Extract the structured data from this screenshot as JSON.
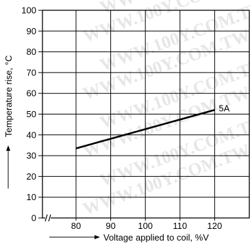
{
  "chart_data": {
    "type": "line",
    "xlabel": "Voltage applied to coil, %V",
    "ylabel": "Temperature rise, °C",
    "x_ticks": [
      80,
      90,
      100,
      110,
      120
    ],
    "y_ticks": [
      0,
      10,
      20,
      30,
      40,
      50,
      60,
      70,
      80,
      90,
      100
    ],
    "xlim": [
      80,
      130
    ],
    "ylim": [
      0,
      100
    ],
    "grid": true,
    "x_axis_break": true,
    "series": [
      {
        "name": "5A",
        "x": [
          80,
          120
        ],
        "y": [
          33.5,
          52
        ]
      }
    ]
  },
  "watermark": "WWW.100Y.COM.TW"
}
